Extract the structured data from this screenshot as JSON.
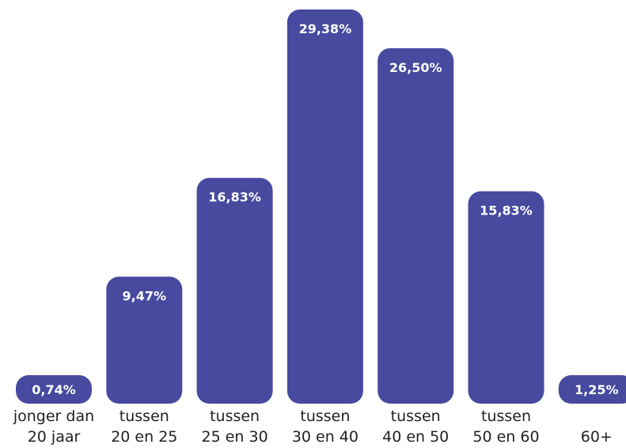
{
  "chart_data": {
    "type": "bar",
    "categories": [
      "jonger dan\n20 jaar",
      "tussen\n20 en 25",
      "tussen\n25 en 30",
      "tussen\n30 en 40",
      "tussen\n40 en 50",
      "tussen\n50 en 60",
      "60+"
    ],
    "values": [
      0.74,
      9.47,
      16.83,
      29.38,
      26.5,
      15.83,
      1.25
    ],
    "value_labels": [
      "0,74%",
      "9,47%",
      "16,83%",
      "29,38%",
      "26,50%",
      "15,83%",
      "1,25%"
    ],
    "color": "#474a9f"
  }
}
